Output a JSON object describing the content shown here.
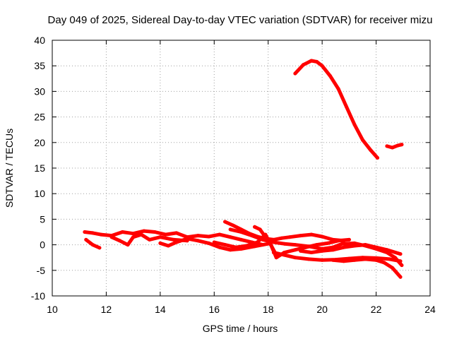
{
  "chart_data": {
    "type": "scatter",
    "title": "Day 049 of 2025, Sidereal Day-to-day VTEC variation (SDTVAR) for receiver mizu",
    "xlabel": "GPS time / hours",
    "ylabel": "SDTVAR / TECUs",
    "xlim": [
      10,
      24
    ],
    "ylim": [
      -10,
      40
    ],
    "xticks": [
      10,
      12,
      14,
      16,
      18,
      20,
      22,
      24
    ],
    "yticks": [
      -10,
      -5,
      0,
      5,
      10,
      15,
      20,
      25,
      30,
      35,
      40
    ],
    "grid": true,
    "color": "#ff0000",
    "series": [
      {
        "name": "s1",
        "x": [
          19.0,
          19.3,
          19.6,
          19.8,
          20.0,
          20.3,
          20.6,
          20.9,
          21.2,
          21.5,
          21.8,
          22.05
        ],
        "y": [
          33.5,
          35.2,
          36.0,
          35.8,
          35.0,
          33.0,
          30.5,
          27.0,
          23.5,
          20.5,
          18.5,
          17.0
        ]
      },
      {
        "name": "s2",
        "x": [
          22.4,
          22.6,
          22.8,
          22.95
        ],
        "y": [
          19.3,
          19.0,
          19.4,
          19.6
        ]
      },
      {
        "name": "s3",
        "x": [
          11.2,
          11.5,
          11.8,
          12.2,
          12.6,
          13.0,
          13.4,
          13.8,
          14.2,
          14.6,
          15.0,
          15.4,
          15.8,
          16.2,
          16.6,
          17.0,
          17.4,
          17.8
        ],
        "y": [
          2.5,
          2.3,
          2.0,
          1.8,
          2.5,
          2.2,
          2.7,
          2.5,
          2.0,
          2.3,
          1.5,
          1.8,
          1.6,
          2.0,
          1.5,
          1.0,
          0.5,
          0.0
        ]
      },
      {
        "name": "s4",
        "x": [
          11.25,
          11.5,
          11.75
        ],
        "y": [
          1.0,
          0.0,
          -0.6
        ]
      },
      {
        "name": "s5",
        "x": [
          12.2,
          12.5,
          12.8,
          13.0,
          13.3,
          13.6,
          14.0,
          14.5,
          15.0
        ],
        "y": [
          1.5,
          0.8,
          0.0,
          1.5,
          2.0,
          1.0,
          1.5,
          1.0,
          0.8
        ]
      },
      {
        "name": "s6",
        "x": [
          14.0,
          14.3,
          14.6,
          15.0,
          15.4,
          15.8,
          16.2,
          16.6,
          17.0,
          17.5,
          18.0
        ],
        "y": [
          0.3,
          -0.2,
          0.5,
          1.2,
          0.8,
          0.3,
          -0.5,
          -1.0,
          -0.8,
          -0.3,
          0.2
        ]
      },
      {
        "name": "s7",
        "x": [
          16.4,
          16.7,
          17.0,
          17.3,
          17.6,
          17.9,
          18.2,
          18.5,
          18.8,
          19.2,
          19.6,
          20.0,
          20.4,
          20.8
        ],
        "y": [
          4.5,
          3.8,
          3.0,
          2.2,
          1.6,
          1.2,
          1.0,
          1.3,
          1.5,
          1.8,
          2.0,
          1.6,
          1.0,
          0.8
        ]
      },
      {
        "name": "s8",
        "x": [
          16.6,
          17.0,
          17.4,
          17.8,
          18.2,
          18.6,
          19.0,
          19.5,
          20.0,
          20.4,
          20.8
        ],
        "y": [
          3.0,
          2.5,
          1.8,
          1.0,
          0.5,
          0.2,
          0.0,
          -0.3,
          -0.8,
          -0.5,
          0.3
        ]
      },
      {
        "name": "s9",
        "x": [
          16.0,
          16.4,
          16.8,
          17.2,
          17.6,
          17.9,
          18.1,
          18.3
        ],
        "y": [
          0.5,
          0.0,
          -0.5,
          -0.2,
          0.5,
          2.0,
          0.0,
          -2.0
        ]
      },
      {
        "name": "s10",
        "x": [
          17.5,
          17.7,
          17.9,
          18.1,
          18.3,
          18.6,
          19.0,
          19.4,
          19.8,
          20.2,
          20.6,
          21.0
        ],
        "y": [
          3.5,
          3.0,
          1.5,
          0.0,
          -2.5,
          -1.5,
          -1.0,
          -0.5,
          0.0,
          0.3,
          0.8,
          1.0
        ]
      },
      {
        "name": "s11",
        "x": [
          18.2,
          18.6,
          19.0,
          19.5,
          20.0,
          20.5,
          21.0,
          21.5,
          22.0,
          22.5,
          22.9
        ],
        "y": [
          -1.5,
          -2.0,
          -2.5,
          -2.8,
          -3.0,
          -2.9,
          -2.7,
          -2.5,
          -2.6,
          -2.8,
          -3.2
        ]
      },
      {
        "name": "s12",
        "x": [
          19.2,
          19.6,
          20.0,
          20.4,
          20.8,
          21.2,
          21.6,
          22.0,
          22.4,
          22.9
        ],
        "y": [
          -1.2,
          -1.5,
          -1.2,
          -1.0,
          -0.5,
          -0.2,
          0.0,
          -0.5,
          -1.0,
          -1.8
        ]
      },
      {
        "name": "s13",
        "x": [
          20.4,
          20.8,
          21.2,
          21.6,
          22.0,
          22.3,
          22.6,
          22.9
        ],
        "y": [
          -3.0,
          -3.2,
          -3.0,
          -2.8,
          -3.0,
          -3.5,
          -4.5,
          -6.3
        ]
      },
      {
        "name": "s14",
        "x": [
          20.8,
          21.2,
          21.6,
          22.0,
          22.4,
          22.7,
          22.95
        ],
        "y": [
          0.2,
          0.3,
          -0.2,
          -0.8,
          -1.5,
          -2.5,
          -4.0
        ]
      }
    ]
  }
}
